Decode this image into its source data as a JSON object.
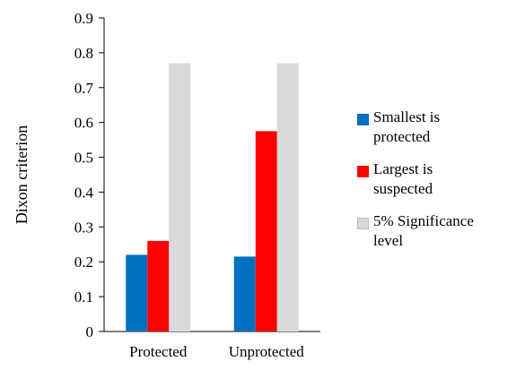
{
  "chart_data": {
    "type": "bar",
    "categories": [
      "Protected",
      "Unprotected"
    ],
    "series": [
      {
        "name": "Smallest is protected",
        "values": [
          0.22,
          0.215
        ],
        "color": "#0070c0"
      },
      {
        "name": "Largest is suspected",
        "values": [
          0.26,
          0.575
        ],
        "color": "#ff0000"
      },
      {
        "name": "5% Significance level",
        "values": [
          0.77,
          0.77
        ],
        "color": "#d9d9d9"
      }
    ],
    "title": "",
    "xlabel": "",
    "ylabel": "Dixon criterion",
    "ylim": [
      0,
      0.9
    ],
    "yticks": [
      "0",
      "0.1",
      "0.2",
      "0.3",
      "0.4",
      "0.5",
      "0.6",
      "0.7",
      "0.8",
      "0.9"
    ],
    "legend_position": "right",
    "grid": false
  },
  "legend": {
    "items": [
      {
        "line1": "Smallest is",
        "line2": "protected"
      },
      {
        "line1": "Largest is",
        "line2": "suspected"
      },
      {
        "line1": "5% Significance",
        "line2": "level"
      }
    ]
  }
}
